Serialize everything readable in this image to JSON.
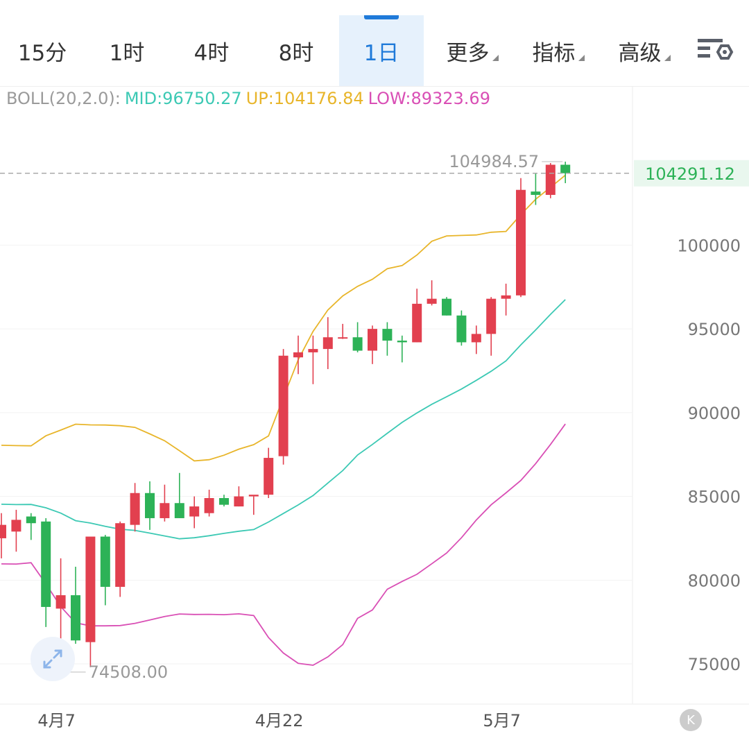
{
  "tabs": [
    {
      "label": "15分",
      "active": false,
      "dropdown": false
    },
    {
      "label": "1时",
      "active": false,
      "dropdown": false
    },
    {
      "label": "4时",
      "active": false,
      "dropdown": false
    },
    {
      "label": "8时",
      "active": false,
      "dropdown": false
    },
    {
      "label": "1日",
      "active": true,
      "dropdown": false
    },
    {
      "label": "更多",
      "active": false,
      "dropdown": true
    },
    {
      "label": "指标",
      "active": false,
      "dropdown": true
    },
    {
      "label": "高级",
      "active": false,
      "dropdown": true
    }
  ],
  "settings_icon": "chart-settings-icon",
  "indicator": {
    "name": "BOLL(20,2.0):",
    "mid": "MID:96750.27",
    "up": "UP:104176.84",
    "low": "LOW:89323.69"
  },
  "colors": {
    "up": "#e2404f",
    "down": "#2db257",
    "mid": "#3cc9b4",
    "upper": "#e8b52a",
    "lower": "#d94fb5",
    "active": "#1f7ad9"
  },
  "fab_icon": "expand-arrows-icon",
  "k_button": "K",
  "chart_data": {
    "type": "candlestick",
    "y_ticks": [
      "100000",
      "95000",
      "90000",
      "85000",
      "80000",
      "75000"
    ],
    "y_tick_values": [
      100000,
      95000,
      90000,
      85000,
      80000,
      75000
    ],
    "ylim": [
      72600,
      109500
    ],
    "x_ticks": [
      {
        "index": 4,
        "label": "4月7"
      },
      {
        "index": 19,
        "label": "4月22"
      },
      {
        "index": 34,
        "label": "5月7"
      }
    ],
    "current_price": "104291.12",
    "current_price_value": 104291.12,
    "max_label": "104984.57",
    "max_label_index": 38,
    "max_value": 104984.57,
    "min_label": "74508.00",
    "min_label_index": 4,
    "min_value": 74508.0,
    "candles": [
      {
        "o": 82500,
        "h": 84000,
        "l": 81300,
        "c": 83300
      },
      {
        "o": 82900,
        "h": 84200,
        "l": 81700,
        "c": 83600
      },
      {
        "o": 83800,
        "h": 84000,
        "l": 82400,
        "c": 83400
      },
      {
        "o": 83500,
        "h": 83700,
        "l": 77200,
        "c": 78400
      },
      {
        "o": 78300,
        "h": 81300,
        "l": 74508,
        "c": 79100
      },
      {
        "o": 79100,
        "h": 80800,
        "l": 76200,
        "c": 76400
      },
      {
        "o": 76300,
        "h": 82500,
        "l": 74800,
        "c": 82600
      },
      {
        "o": 82600,
        "h": 82700,
        "l": 78500,
        "c": 79600
      },
      {
        "o": 79600,
        "h": 83500,
        "l": 79000,
        "c": 83400
      },
      {
        "o": 83300,
        "h": 85800,
        "l": 82900,
        "c": 85200
      },
      {
        "o": 85200,
        "h": 85900,
        "l": 83000,
        "c": 83700
      },
      {
        "o": 83700,
        "h": 85700,
        "l": 83500,
        "c": 84600
      },
      {
        "o": 84600,
        "h": 86400,
        "l": 83700,
        "c": 83700
      },
      {
        "o": 83800,
        "h": 85000,
        "l": 83100,
        "c": 84400
      },
      {
        "o": 84000,
        "h": 85400,
        "l": 83800,
        "c": 84900
      },
      {
        "o": 84900,
        "h": 85100,
        "l": 84400,
        "c": 84500
      },
      {
        "o": 84400,
        "h": 85600,
        "l": 84400,
        "c": 85000
      },
      {
        "o": 85000,
        "h": 85000,
        "l": 83900,
        "c": 85100
      },
      {
        "o": 85100,
        "h": 87900,
        "l": 84900,
        "c": 87300
      },
      {
        "o": 87400,
        "h": 93800,
        "l": 86900,
        "c": 93400
      },
      {
        "o": 93300,
        "h": 94600,
        "l": 92300,
        "c": 93600
      },
      {
        "o": 93600,
        "h": 94600,
        "l": 91700,
        "c": 93800
      },
      {
        "o": 93800,
        "h": 95700,
        "l": 92600,
        "c": 94500
      },
      {
        "o": 94500,
        "h": 95300,
        "l": 94400,
        "c": 94500
      },
      {
        "o": 94500,
        "h": 95400,
        "l": 93600,
        "c": 93700
      },
      {
        "o": 93700,
        "h": 95200,
        "l": 92900,
        "c": 95000
      },
      {
        "o": 95000,
        "h": 95400,
        "l": 93400,
        "c": 94300
      },
      {
        "o": 94300,
        "h": 94600,
        "l": 93000,
        "c": 94200
      },
      {
        "o": 94200,
        "h": 97400,
        "l": 94200,
        "c": 96500
      },
      {
        "o": 96500,
        "h": 97900,
        "l": 96400,
        "c": 96800
      },
      {
        "o": 96800,
        "h": 96900,
        "l": 95800,
        "c": 95800
      },
      {
        "o": 95800,
        "h": 96100,
        "l": 94000,
        "c": 94200
      },
      {
        "o": 94200,
        "h": 95200,
        "l": 93500,
        "c": 94700
      },
      {
        "o": 94700,
        "h": 96900,
        "l": 93400,
        "c": 96800
      },
      {
        "o": 96800,
        "h": 97700,
        "l": 95800,
        "c": 97000
      },
      {
        "o": 97000,
        "h": 104000,
        "l": 96900,
        "c": 103300
      },
      {
        "o": 103200,
        "h": 104300,
        "l": 102400,
        "c": 103000
      },
      {
        "o": 103000,
        "h": 104900,
        "l": 102800,
        "c": 104800
      },
      {
        "o": 104800,
        "h": 104984.57,
        "l": 103700,
        "c": 104291.12
      }
    ],
    "boll_upper": [
      88050,
      88030,
      88020,
      88620,
      88960,
      89310,
      89270,
      89260,
      89220,
      89120,
      88730,
      88320,
      87730,
      87120,
      87190,
      87460,
      87820,
      88090,
      88610,
      90900,
      93160,
      94850,
      96130,
      96970,
      97540,
      97960,
      98590,
      98780,
      99410,
      100230,
      100550,
      100580,
      100610,
      100770,
      100820,
      101820,
      102740,
      103450,
      104176.84
    ],
    "boll_mid": [
      84530,
      84510,
      84520,
      84320,
      84000,
      83550,
      83410,
      83210,
      83040,
      82970,
      82810,
      82640,
      82470,
      82530,
      82650,
      82790,
      82920,
      83020,
      83470,
      83980,
      84490,
      85050,
      85800,
      86540,
      87470,
      88100,
      88770,
      89420,
      89980,
      90500,
      90950,
      91410,
      91930,
      92470,
      93090,
      94050,
      94940,
      95870,
      96750.27
    ],
    "boll_lower": [
      80970,
      80960,
      81040,
      79780,
      78420,
      77450,
      77270,
      77270,
      77290,
      77420,
      77620,
      77830,
      77980,
      77950,
      77960,
      77940,
      77990,
      77890,
      76570,
      75650,
      75030,
      74920,
      75420,
      76150,
      77720,
      78220,
      79460,
      79920,
      80350,
      80980,
      81620,
      82530,
      83590,
      84500,
      85210,
      85950,
      86960,
      88100,
      89323.69
    ]
  }
}
